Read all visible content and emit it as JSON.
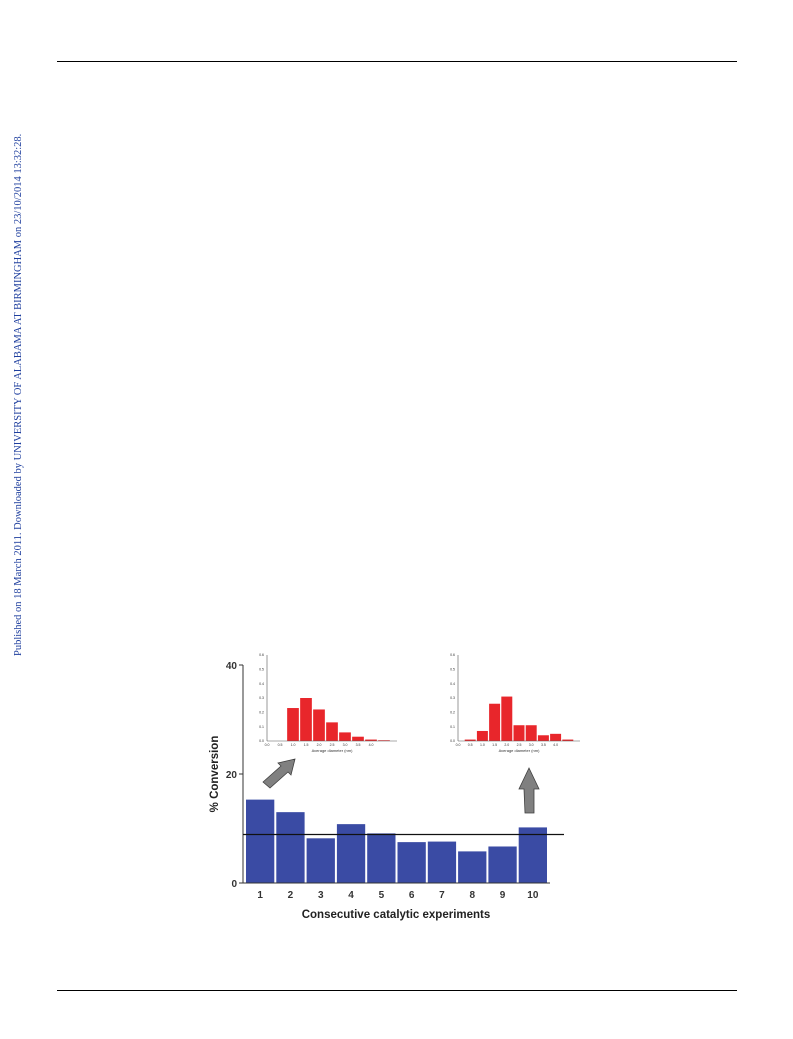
{
  "watermark": "Published on 18 March 2011. Downloaded by UNIVERSITY OF ALABAMA AT BIRMINGHAM on 23/10/2014 13:32:28.",
  "colors": {
    "main_bar": "#3a4ba4",
    "inset_bar": "#e8262b",
    "arrow": "#808080",
    "watermark": "#1f3f9e"
  },
  "chart_data": {
    "type": "bar",
    "xlabel": "Consecutive catalytic experiments",
    "ylabel": "% Conversion",
    "categories": [
      "1",
      "2",
      "3",
      "4",
      "5",
      "6",
      "7",
      "8",
      "9",
      "10"
    ],
    "values": [
      15.3,
      13.0,
      8.2,
      10.8,
      9.1,
      7.5,
      7.6,
      5.8,
      6.7,
      10.2
    ],
    "ylim": [
      0,
      40
    ],
    "yticks": [
      "0",
      "20",
      "40"
    ],
    "reference_line": 8.9,
    "grid": false,
    "insets": [
      {
        "position": "top-left",
        "type": "bar",
        "xlabel": "Average diameter (nm)",
        "x": [
          1.0,
          1.5,
          2.0,
          2.5,
          3.0,
          3.5,
          4.0,
          4.5
        ],
        "values": [
          0.23,
          0.3,
          0.22,
          0.13,
          0.06,
          0.03,
          0.01,
          0.005
        ],
        "xlim": [
          0.0,
          5.0
        ],
        "ylim": [
          0,
          0.6
        ],
        "xticks": [
          "0.0",
          "0.5",
          "1.0",
          "1.5",
          "2.0",
          "2.5",
          "3.0",
          "3.5",
          "4.0"
        ],
        "yticks": [
          "0.0",
          "0.1",
          "0.2",
          "0.3",
          "0.4",
          "0.5",
          "0.6"
        ]
      },
      {
        "position": "top-right",
        "type": "bar",
        "xlabel": "Average diameter (nm)",
        "x": [
          0.5,
          1.0,
          1.5,
          2.0,
          2.5,
          3.0,
          3.5,
          4.0,
          4.5
        ],
        "values": [
          0.01,
          0.07,
          0.26,
          0.31,
          0.11,
          0.11,
          0.04,
          0.05,
          0.01
        ],
        "xlim": [
          0.0,
          5.0
        ],
        "ylim": [
          0,
          0.6
        ],
        "xticks": [
          "0.0",
          "0.5",
          "1.0",
          "1.5",
          "2.0",
          "2.5",
          "3.0",
          "3.5",
          "4.0"
        ],
        "yticks": [
          "0.0",
          "0.1",
          "0.2",
          "0.3",
          "0.4",
          "0.5",
          "0.6"
        ]
      }
    ]
  }
}
